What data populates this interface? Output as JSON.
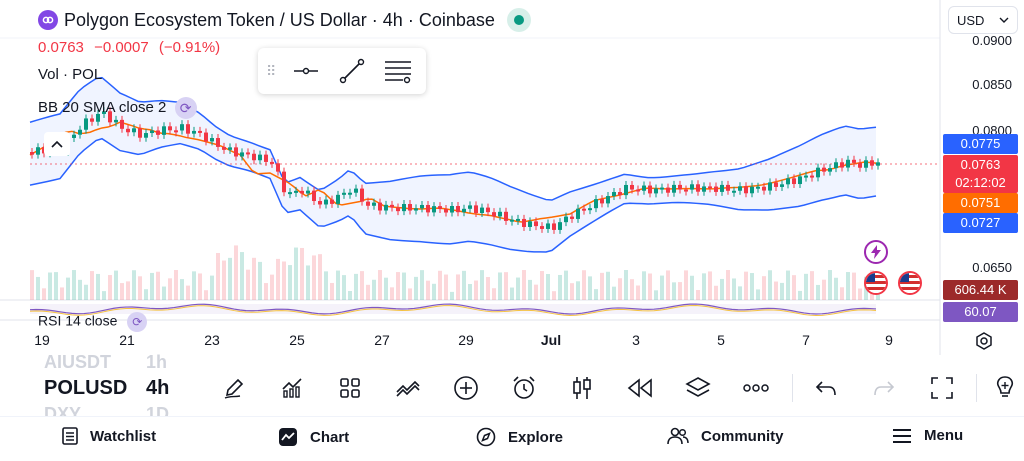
{
  "header": {
    "title": "Polygon Ecosystem Token / US Dollar · 4h · Coinbase",
    "price": "0.0763",
    "change": "−0.0007",
    "change_pct": "(−0.91%)",
    "status_color": "#089981"
  },
  "legend": {
    "volume": "Vol · POL",
    "bollinger": "BB 20 SMA close 2",
    "rsi": "RSI 14 close"
  },
  "currency_select": {
    "value": "USD"
  },
  "drawing_toolbar": {
    "items": [
      {
        "name": "horizontal-line-tool",
        "icon": "horizontal-line-icon"
      },
      {
        "name": "trend-line-tool",
        "icon": "trend-line-icon"
      },
      {
        "name": "settings-tool",
        "icon": "line-settings-icon"
      }
    ]
  },
  "price_axis": {
    "labels": [
      "0.0900",
      "0.0850",
      "0.0800",
      "0.0650"
    ],
    "badges": {
      "bb_upper": {
        "value": "0.0775",
        "color": "#2962ff"
      },
      "last_price": {
        "value": "0.0763",
        "color": "#f23645"
      },
      "countdown": {
        "value": "02:12:02",
        "color": "#f23645"
      },
      "bb_basis": {
        "value": "0.0751",
        "color": "#ff6d00"
      },
      "bb_lower": {
        "value": "0.0727",
        "color": "#2962ff"
      },
      "volume": {
        "value": "606.44 K",
        "color": "#9c2a2a"
      },
      "rsi": {
        "value": "60.07",
        "color": "#7e57c2"
      }
    }
  },
  "time_axis": {
    "labels": [
      "19",
      "21",
      "23",
      "25",
      "27",
      "29",
      "Jul",
      "3",
      "5",
      "7",
      "9"
    ]
  },
  "toolbar": {
    "symbol_prev": "AIUSDT",
    "symbol": "POLUSD",
    "symbol_next": "DXY",
    "interval_prev": "1h",
    "interval": "4h",
    "interval_next": "1D",
    "tools": [
      {
        "name": "draw-tool-button",
        "icon": "pencil-icon"
      },
      {
        "name": "indicators-button",
        "icon": "indicators-icon"
      },
      {
        "name": "layout-button",
        "icon": "grid-icon"
      },
      {
        "name": "compare-button",
        "icon": "compare-icon"
      },
      {
        "name": "add-button",
        "icon": "plus-circle-icon"
      },
      {
        "name": "alert-button",
        "icon": "alarm-clock-icon"
      },
      {
        "name": "chart-type-button",
        "icon": "candles-icon"
      },
      {
        "name": "replay-button",
        "icon": "rewind-icon"
      },
      {
        "name": "layers-button",
        "icon": "layers-icon"
      },
      {
        "name": "more-button",
        "icon": "more-icon"
      },
      {
        "name": "undo-button",
        "icon": "undo-icon"
      },
      {
        "name": "redo-button",
        "icon": "redo-icon"
      },
      {
        "name": "fullscreen-button",
        "icon": "fullscreen-icon"
      },
      {
        "name": "ideas-button",
        "icon": "lightbulb-icon"
      }
    ]
  },
  "bottom_nav": {
    "items": [
      {
        "label": "Watchlist",
        "icon": "watchlist-icon"
      },
      {
        "label": "Chart",
        "icon": "chart-icon"
      },
      {
        "label": "Explore",
        "icon": "compass-icon"
      },
      {
        "label": "Community",
        "icon": "community-icon"
      },
      {
        "label": "Menu",
        "icon": "menu-icon"
      }
    ]
  },
  "colors": {
    "up": "#089981",
    "down": "#f23645",
    "bb_band": "#2962ff",
    "bb_basis": "#ff6d00",
    "rsi": "#7e57c2"
  }
}
